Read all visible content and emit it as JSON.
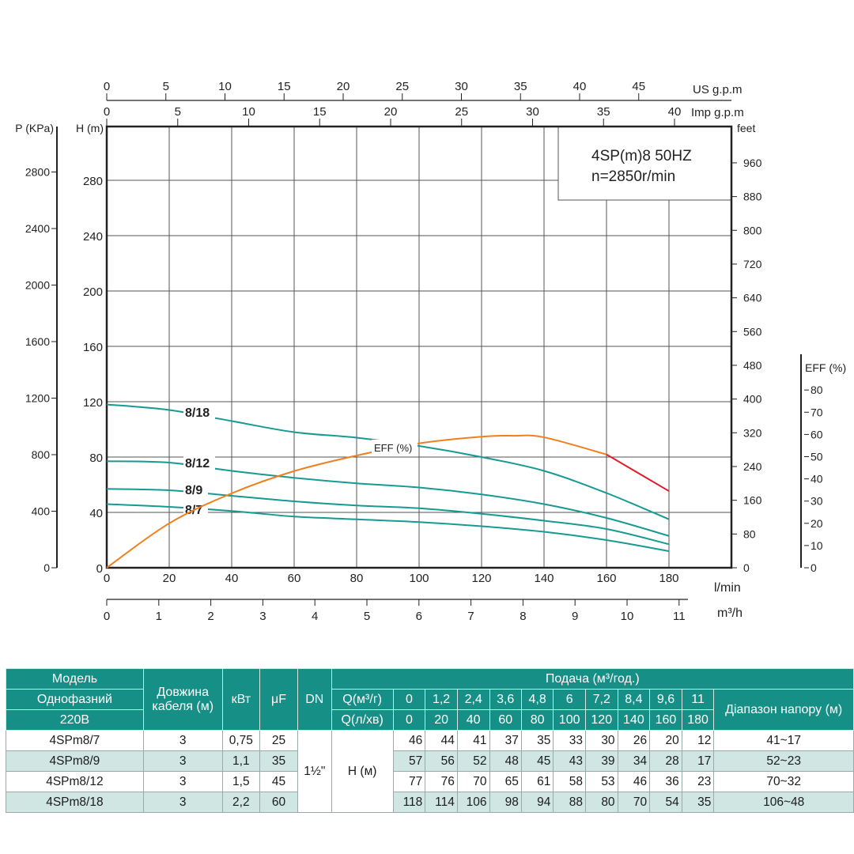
{
  "chart_data": {
    "type": "line",
    "title": "4SP(m)8  50HZ",
    "subtitle": "n=2850r/min",
    "xlabel": "l/min",
    "ylabel": "H (m)",
    "xlim": [
      0,
      200
    ],
    "ylim": [
      0,
      320
    ],
    "grid": true,
    "x_ticks": [
      20,
      40,
      60,
      80,
      100,
      120,
      140,
      160,
      180
    ],
    "x_origin_label": "0",
    "y_ticks": [
      0,
      40,
      80,
      120,
      160,
      200,
      240,
      280
    ],
    "secondary_axes": {
      "kpa": {
        "label": "P (KPa)",
        "ticks": [
          0,
          400,
          800,
          1200,
          1600,
          2000,
          2400,
          2800
        ]
      },
      "feet": {
        "label": "feet",
        "ticks": [
          0,
          80,
          160,
          240,
          320,
          400,
          480,
          560,
          640,
          720,
          800,
          880,
          960
        ]
      },
      "us_gpm": {
        "label": "US g.p.m",
        "ticks": [
          0,
          5,
          10,
          15,
          20,
          25,
          30,
          35,
          40,
          45
        ]
      },
      "imp_gpm": {
        "label": "Imp g.p.m",
        "ticks": [
          0,
          5,
          10,
          15,
          20,
          25,
          30,
          35,
          40
        ]
      },
      "m3h": {
        "label": "m³/h",
        "ticks": [
          0,
          1,
          2,
          3,
          4,
          5,
          6,
          7,
          8,
          9,
          10,
          11
        ]
      },
      "eff": {
        "label": "EFF (%)",
        "ticks": [
          0,
          10,
          20,
          30,
          40,
          50,
          60,
          70,
          80
        ]
      }
    },
    "x": [
      0,
      20,
      40,
      60,
      80,
      100,
      120,
      140,
      160,
      180
    ],
    "series": [
      {
        "name": "8/18",
        "values": [
          118,
          114,
          106,
          98,
          94,
          88,
          80,
          70,
          54,
          35
        ]
      },
      {
        "name": "8/12",
        "values": [
          77,
          76,
          70,
          65,
          61,
          58,
          53,
          46,
          36,
          23
        ]
      },
      {
        "name": "8/9",
        "values": [
          57,
          56,
          52,
          48,
          45,
          43,
          39,
          34,
          28,
          17
        ]
      },
      {
        "name": "8/7",
        "values": [
          46,
          44,
          41,
          37,
          35,
          33,
          30,
          26,
          20,
          12
        ]
      },
      {
        "name": "EFF (%)",
        "axis": "eff",
        "x": [
          0,
          20,
          40,
          60,
          80,
          100,
          120,
          130,
          140,
          160,
          180
        ],
        "values": [
          0,
          20,
          33.5,
          43.5,
          50.5,
          56,
          59,
          59.4,
          58.7,
          51,
          34.5
        ]
      }
    ],
    "colors": {
      "head": "#169a93",
      "eff": "#f07f1e",
      "eff_overload": "#e3192b",
      "grid": "#555555"
    }
  },
  "table": {
    "header": {
      "model": [
        "Модель",
        "Однофазний",
        "220В"
      ],
      "cable": "Довжина кабеля (м)",
      "kw": "кВт",
      "uf": "μF",
      "dn": "DN",
      "flow_title": "Подача (м³/год.)",
      "q_m3": "Q(м³/г)",
      "q_l": "Q(л/хв)",
      "q_m3_values": [
        "0",
        "1,2",
        "2,4",
        "3,6",
        "4,8",
        "6",
        "7,2",
        "8,4",
        "9,6",
        "11"
      ],
      "q_l_values": [
        "0",
        "20",
        "40",
        "60",
        "80",
        "100",
        "120",
        "140",
        "160",
        "180"
      ],
      "range": "Діапазон напору (м)"
    },
    "dn_value": "1½\"",
    "h_label": "H (м)",
    "rows": [
      {
        "model": "4SPm8/7",
        "cable": "3",
        "kw": "0,75",
        "uf": "25",
        "h": [
          "46",
          "44",
          "41",
          "37",
          "35",
          "33",
          "30",
          "26",
          "20",
          "12"
        ],
        "range": "41~17"
      },
      {
        "model": "4SPm8/9",
        "cable": "3",
        "kw": "1,1",
        "uf": "35",
        "h": [
          "57",
          "56",
          "52",
          "48",
          "45",
          "43",
          "39",
          "34",
          "28",
          "17"
        ],
        "range": "52~23"
      },
      {
        "model": "4SPm8/12",
        "cable": "3",
        "kw": "1,5",
        "uf": "45",
        "h": [
          "77",
          "76",
          "70",
          "65",
          "61",
          "58",
          "53",
          "46",
          "36",
          "23"
        ],
        "range": "70~32"
      },
      {
        "model": "4SPm8/18",
        "cable": "3",
        "kw": "2,2",
        "uf": "60",
        "h": [
          "118",
          "114",
          "106",
          "98",
          "94",
          "88",
          "80",
          "70",
          "54",
          "35"
        ],
        "range": "106~48"
      }
    ]
  }
}
